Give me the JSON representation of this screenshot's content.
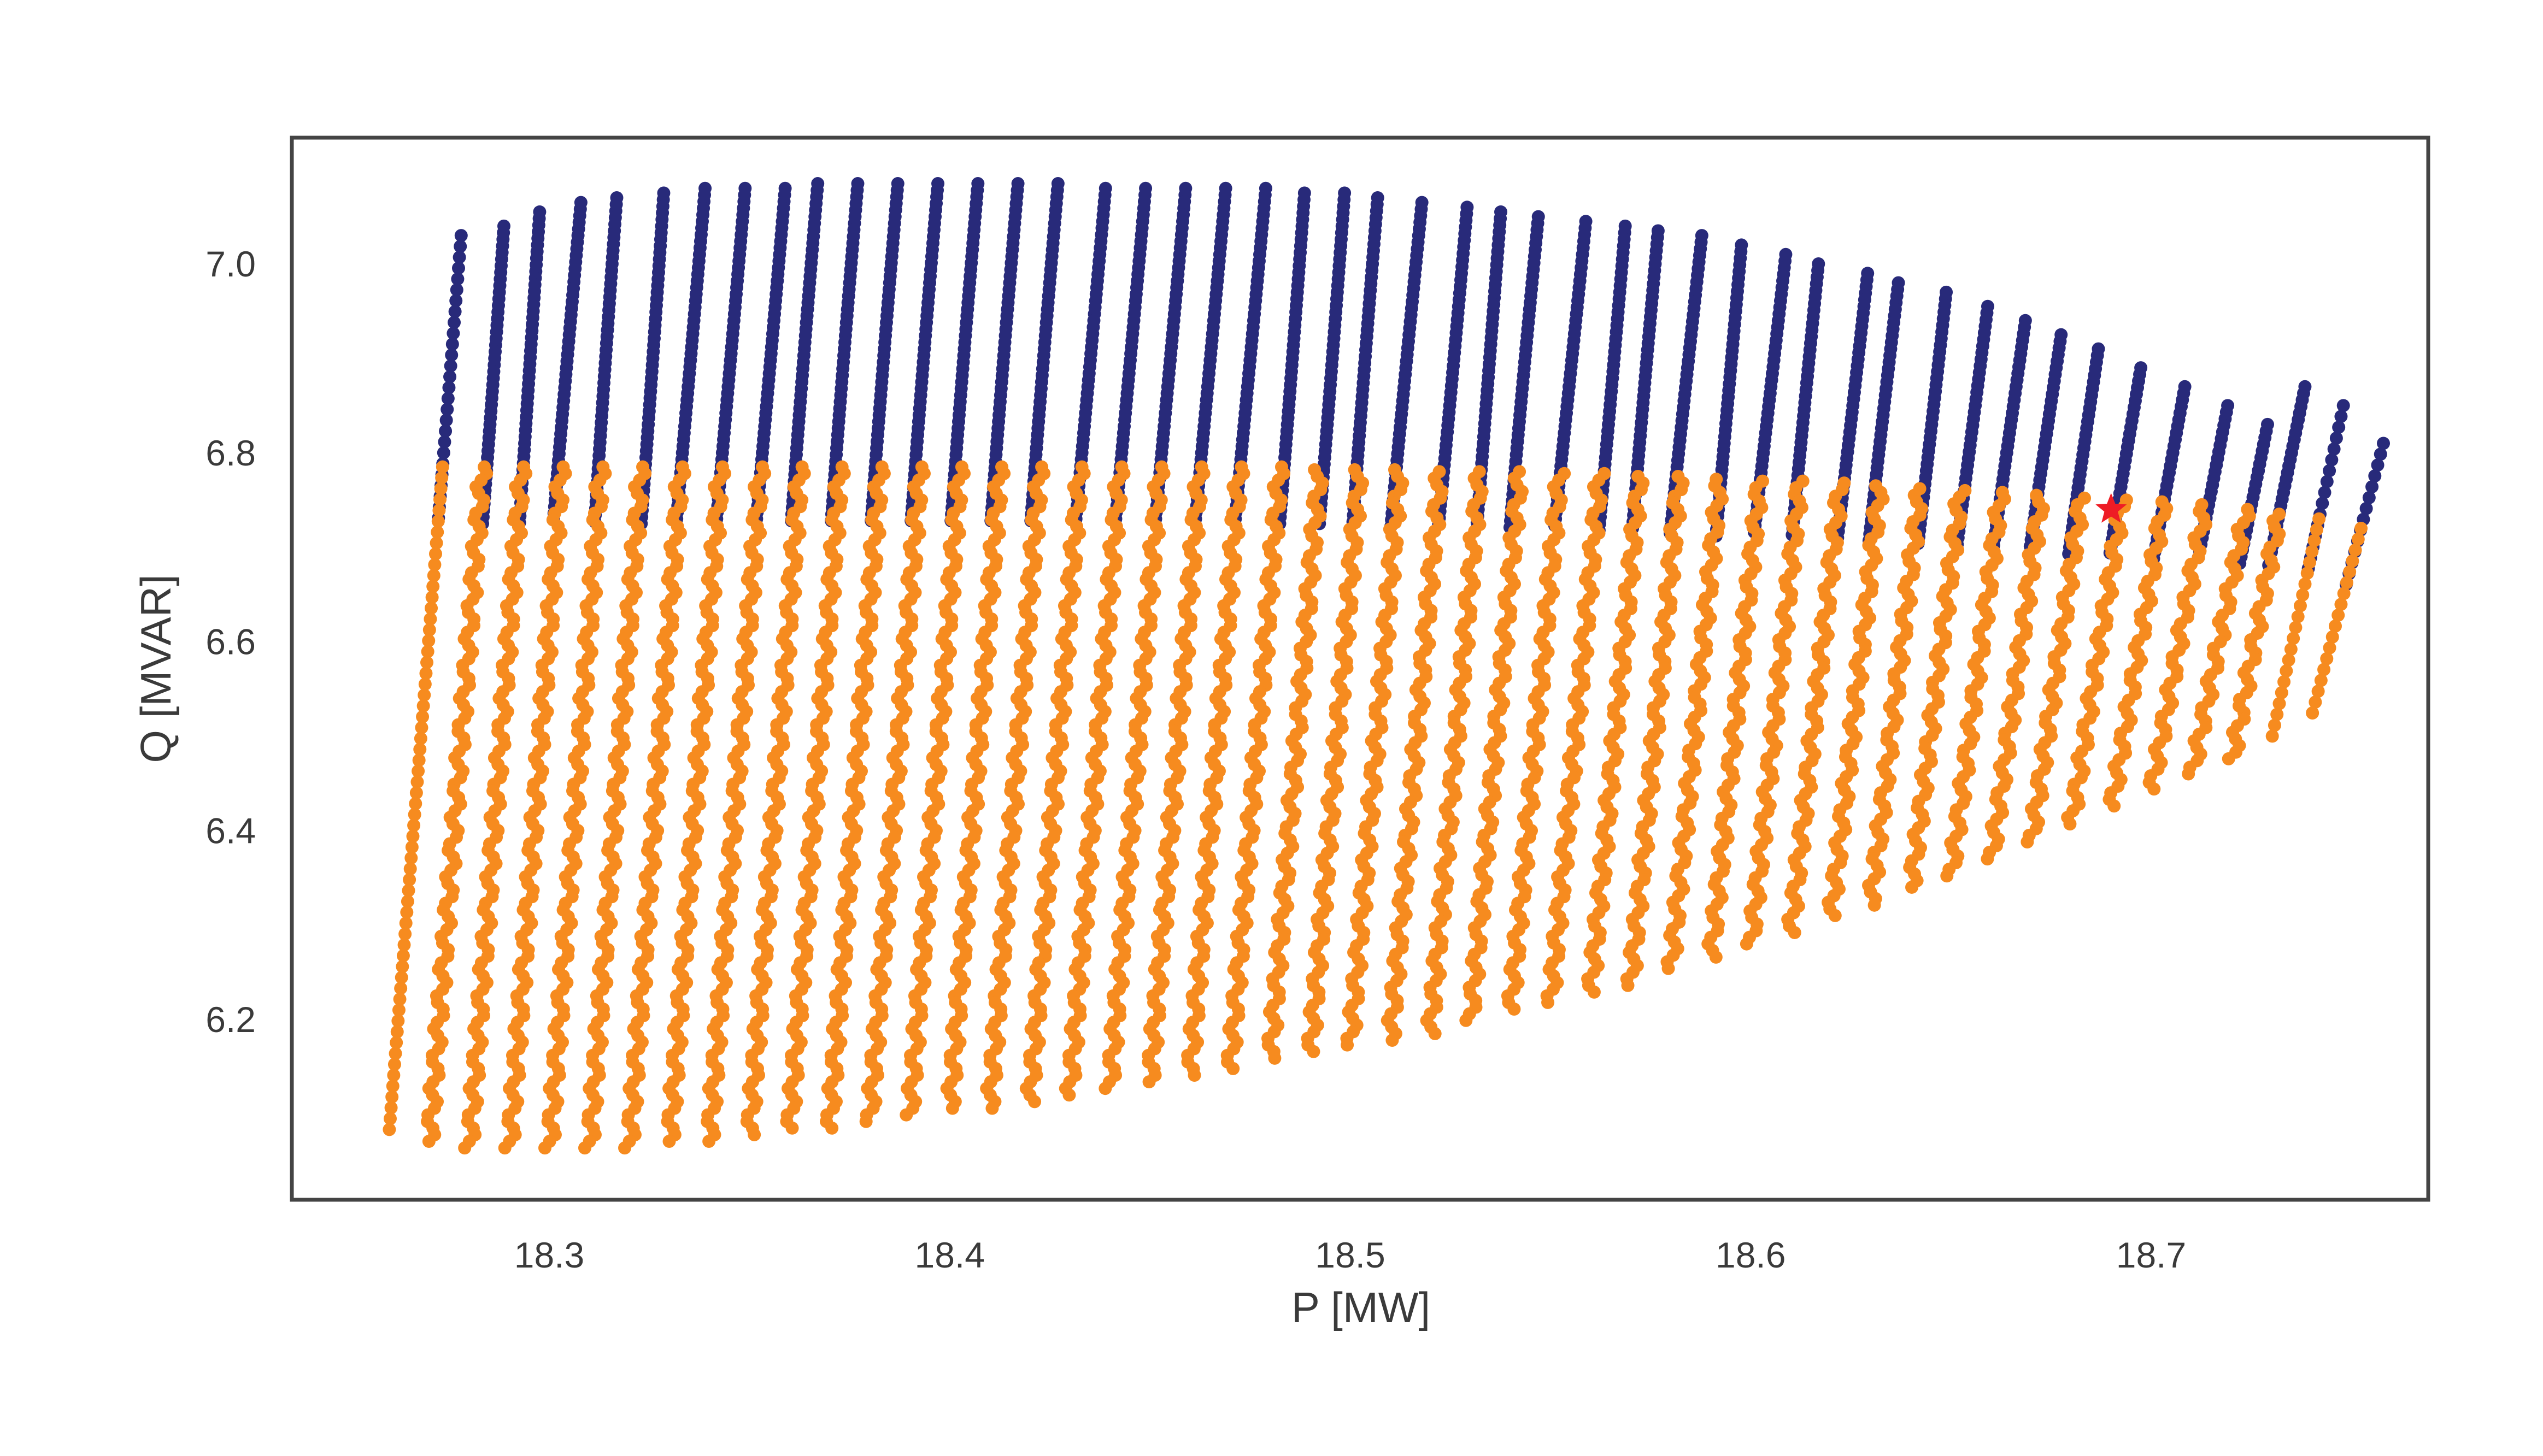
{
  "chart_data": {
    "type": "scatter",
    "title": "",
    "xlabel": "P [MW]",
    "ylabel": "Q [MVAR]",
    "xlim": [
      18.232,
      18.766
    ],
    "ylim": [
      6.005,
      7.13
    ],
    "xticks": [
      "18.3",
      "18.4",
      "18.5",
      "18.6",
      "18.7"
    ],
    "xtick_values": [
      18.3,
      18.4,
      18.5,
      18.6,
      18.7
    ],
    "yticks": [
      "6.2",
      "6.4",
      "6.6",
      "6.8",
      "7.0"
    ],
    "ytick_values": [
      6.2,
      6.4,
      6.6,
      6.8,
      7.0
    ],
    "grid": false,
    "colors": {
      "upper": "#282a7a",
      "lower": "#f68b1f",
      "marker": "#ee1c25",
      "axis": "#444444",
      "text": "#3a3a3a"
    },
    "columns": {
      "description": "49 slanted point columns; each column runs from its bottom P/Q to its top P/Q",
      "p_bottom_start": 18.26,
      "p_step": 0.01,
      "p_shift_lower_top": 0.0125,
      "p_shift_upper_top": 0.018,
      "q_bottom": [
        6.08,
        6.065,
        6.06,
        6.058,
        6.058,
        6.06,
        6.062,
        6.065,
        6.07,
        6.075,
        6.08,
        6.085,
        6.09,
        6.095,
        6.1,
        6.105,
        6.11,
        6.12,
        6.125,
        6.13,
        6.14,
        6.145,
        6.155,
        6.16,
        6.17,
        6.175,
        6.185,
        6.195,
        6.205,
        6.215,
        6.225,
        6.235,
        6.25,
        6.26,
        6.275,
        6.29,
        6.305,
        6.32,
        6.335,
        6.35,
        6.365,
        6.385,
        6.405,
        6.42,
        6.44,
        6.455,
        6.47,
        6.495,
        6.52
      ],
      "q_lower_top": [
        6.785,
        6.785,
        6.785,
        6.785,
        6.785,
        6.785,
        6.785,
        6.785,
        6.785,
        6.785,
        6.785,
        6.785,
        6.785,
        6.785,
        6.785,
        6.785,
        6.785,
        6.785,
        6.785,
        6.785,
        6.785,
        6.785,
        6.782,
        6.782,
        6.782,
        6.78,
        6.78,
        6.78,
        6.778,
        6.778,
        6.775,
        6.775,
        6.772,
        6.77,
        6.77,
        6.768,
        6.765,
        6.762,
        6.76,
        6.758,
        6.755,
        6.752,
        6.75,
        6.748,
        6.745,
        6.74,
        6.735,
        6.73,
        6.72
      ],
      "q_upper_top": [
        7.03,
        7.04,
        7.055,
        7.065,
        7.07,
        7.075,
        7.08,
        7.08,
        7.08,
        7.085,
        7.085,
        7.085,
        7.085,
        7.085,
        7.085,
        7.085,
        7.08,
        7.08,
        7.08,
        7.08,
        7.08,
        7.075,
        7.075,
        7.07,
        7.065,
        7.06,
        7.055,
        7.05,
        7.045,
        7.04,
        7.035,
        7.03,
        7.02,
        7.01,
        7.0,
        6.99,
        6.98,
        6.97,
        6.955,
        6.94,
        6.925,
        6.91,
        6.89,
        6.87,
        6.85,
        6.83,
        6.87,
        6.85,
        6.81
      ]
    },
    "series": [
      {
        "name": "upper region",
        "color": "#282a7a",
        "marker": "circle"
      },
      {
        "name": "lower region",
        "color": "#f68b1f",
        "marker": "circle"
      },
      {
        "name": "operating point",
        "color": "#ee1c25",
        "marker": "star",
        "x": 18.69,
        "y": 6.74
      }
    ]
  }
}
